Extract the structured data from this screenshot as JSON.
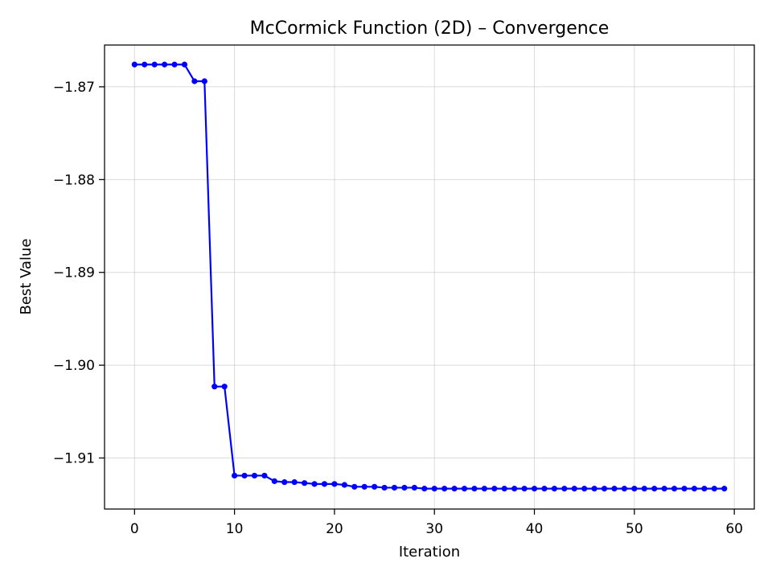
{
  "chart_data": {
    "type": "line",
    "title": "McCormick Function (2D) – Convergence",
    "xlabel": "Iteration",
    "ylabel": "Best Value",
    "xlim": [
      -3,
      62
    ],
    "ylim": [
      -1.9155,
      -1.8655
    ],
    "x_ticks": [
      0,
      10,
      20,
      30,
      40,
      50,
      60
    ],
    "x_tick_labels": [
      "0",
      "10",
      "20",
      "30",
      "40",
      "50",
      "60"
    ],
    "y_ticks": [
      -1.87,
      -1.88,
      -1.89,
      -1.9,
      -1.91
    ],
    "y_tick_labels": [
      "−1.87",
      "−1.88",
      "−1.89",
      "−1.90",
      "−1.91"
    ],
    "grid": true,
    "series": [
      {
        "color": "#0000ff",
        "marker": "circle",
        "x": [
          0,
          1,
          2,
          3,
          4,
          5,
          6,
          7,
          8,
          9,
          10,
          11,
          12,
          13,
          14,
          15,
          16,
          17,
          18,
          19,
          20,
          21,
          22,
          23,
          24,
          25,
          26,
          27,
          28,
          29,
          30,
          31,
          32,
          33,
          34,
          35,
          36,
          37,
          38,
          39,
          40,
          41,
          42,
          43,
          44,
          45,
          46,
          47,
          48,
          49,
          50,
          51,
          52,
          53,
          54,
          55,
          56,
          57,
          58,
          59
        ],
        "values": [
          -1.8676,
          -1.8676,
          -1.8676,
          -1.8676,
          -1.8676,
          -1.8676,
          -1.8694,
          -1.8694,
          -1.9023,
          -1.9023,
          -1.9119,
          -1.9119,
          -1.9119,
          -1.9119,
          -1.9125,
          -1.9126,
          -1.9126,
          -1.9127,
          -1.9128,
          -1.9128,
          -1.9128,
          -1.9129,
          -1.9131,
          -1.9131,
          -1.9131,
          -1.9132,
          -1.9132,
          -1.9132,
          -1.9132,
          -1.9133,
          -1.9133,
          -1.9133,
          -1.9133,
          -1.9133,
          -1.9133,
          -1.9133,
          -1.9133,
          -1.9133,
          -1.9133,
          -1.9133,
          -1.9133,
          -1.9133,
          -1.9133,
          -1.9133,
          -1.9133,
          -1.9133,
          -1.9133,
          -1.9133,
          -1.9133,
          -1.9133,
          -1.9133,
          -1.9133,
          -1.9133,
          -1.9133,
          -1.9133,
          -1.9133,
          -1.9133,
          -1.9133,
          -1.9133,
          -1.9133
        ]
      }
    ]
  }
}
